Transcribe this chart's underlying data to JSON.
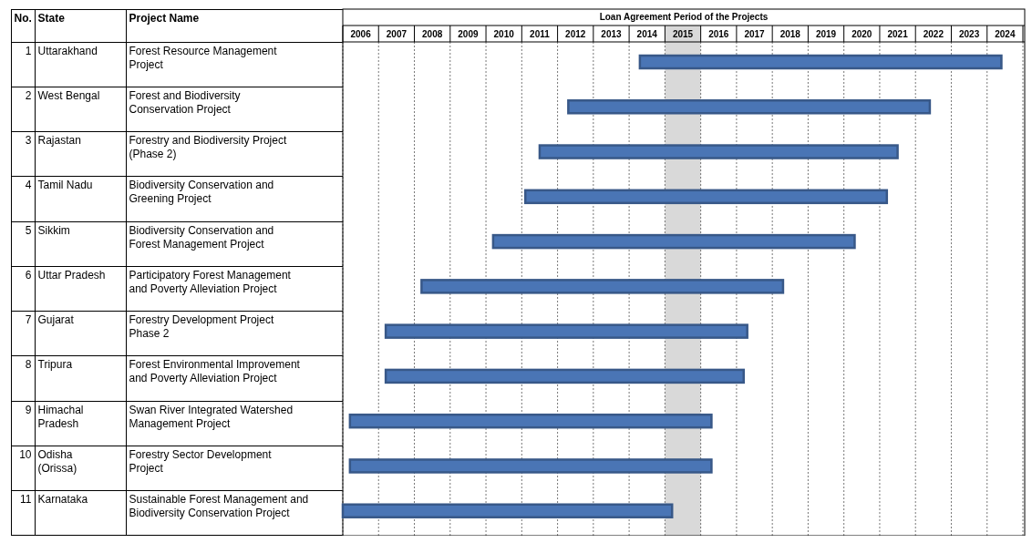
{
  "chart_data": {
    "type": "bar",
    "orientation": "horizontal",
    "title": "Loan Agreement Period of the Projects",
    "categories": [
      "Forest Resource Management Project",
      "Forest and Biodiversity Conservation Project",
      "Forestry and Biodiversity Project (Phase 2)",
      "Biodiversity Conservation and Greening Project",
      "Biodiversity Conservation and Forest Management Project",
      "Participatory Forest Management and Poverty Alleviation Project",
      "Forestry Development Project Phase 2",
      "Forest Environmental Improvement and Poverty Alleviation Project",
      "Swan River Integrated Watershed Management Project",
      "Forestry Sector Development Project",
      "Sustainable Forest Management and Biodiversity Conservation Project"
    ],
    "base": [
      2014.3,
      2012.3,
      2011.5,
      2011.1,
      2010.2,
      2008.2,
      2007.2,
      2007.2,
      2006.2,
      2006.2,
      2006.0
    ],
    "values": [
      10.1,
      10.1,
      10.0,
      10.1,
      10.1,
      10.1,
      10.1,
      10.0,
      10.1,
      10.1,
      9.2
    ],
    "color": "#4a75b5",
    "xlim": [
      2006,
      2025
    ],
    "xticks": [
      {
        "value": 2006.5,
        "label": "2006"
      },
      {
        "value": 2007.5,
        "label": "2007"
      },
      {
        "value": 2008.5,
        "label": "2008"
      },
      {
        "value": 2009.5,
        "label": "2009"
      },
      {
        "value": 2010.5,
        "label": "2010"
      },
      {
        "value": 2011.5,
        "label": "2011"
      },
      {
        "value": 2012.5,
        "label": "2012"
      },
      {
        "value": 2013.5,
        "label": "2013"
      },
      {
        "value": 2014.5,
        "label": "2014"
      },
      {
        "value": 2015.5,
        "label": "2015"
      },
      {
        "value": 2016.5,
        "label": "2016"
      },
      {
        "value": 2017.5,
        "label": "2017"
      },
      {
        "value": 2018.5,
        "label": "2018"
      },
      {
        "value": 2019.5,
        "label": "2019"
      },
      {
        "value": 2020.5,
        "label": "2020"
      },
      {
        "value": 2021.5,
        "label": "2021"
      },
      {
        "value": 2022.5,
        "label": "2022"
      },
      {
        "value": 2023.5,
        "label": "2023"
      },
      {
        "value": 2024.5,
        "label": "2024"
      }
    ],
    "bands": [
      {
        "axis": "x",
        "from": 2015,
        "to": 2016,
        "color": "#d9d9d9"
      }
    ],
    "grid": "x",
    "annotations": [
      "No.",
      "State",
      "Project Name",
      "1",
      "Uttarakhand",
      "2",
      "West Bengal",
      "3",
      "Rajastan",
      "4",
      "Tamil Nadu",
      "5",
      "Sikkim",
      "6",
      "Uttar Pradesh",
      "7",
      "Gujarat",
      "8",
      "Tripura",
      "9",
      "Himachal Pradesh",
      "10",
      "Odisha (Orissa)",
      "11",
      "Karnataka"
    ]
  }
}
